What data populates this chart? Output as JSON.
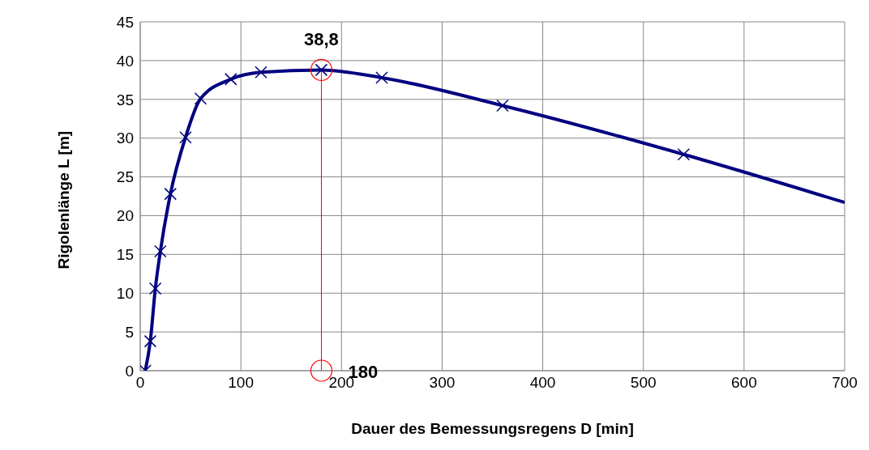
{
  "chart_data": {
    "type": "line",
    "xlabel": "Dauer des Bemessungsregens  D [min]",
    "ylabel": "Rigolenlänge L [m]",
    "series": [
      {
        "color": "#000080",
        "marker": "none",
        "x": [
          5,
          10,
          15,
          20,
          30,
          45,
          60,
          90,
          120,
          180,
          240,
          360,
          540,
          700
        ],
        "values": [
          0,
          3.8,
          10.6,
          15.4,
          22.8,
          30.1,
          35.1,
          37.6,
          38.5,
          38.8,
          37.8,
          34.2,
          27.9,
          21.7
        ]
      },
      {
        "type": "scatter",
        "color": "#000080",
        "marker": "cross",
        "x": [
          5,
          10,
          15,
          20,
          30,
          45,
          60,
          90,
          120,
          180,
          240,
          360,
          540
        ],
        "values": [
          0,
          3.8,
          10.6,
          15.4,
          22.8,
          30.1,
          35.1,
          37.6,
          38.5,
          38.8,
          37.8,
          34.2,
          27.9
        ]
      }
    ],
    "xlim": [
      0,
      700
    ],
    "xticks": [
      0,
      100,
      200,
      300,
      400,
      500,
      600,
      700
    ],
    "ylim": [
      0,
      45
    ],
    "yticks": [
      0,
      5,
      10,
      15,
      20,
      25,
      30,
      35,
      40,
      45
    ],
    "grid": true,
    "ref_lines": [
      {
        "axis": "x",
        "value": 180,
        "color": "#ff0000"
      }
    ],
    "annotations": [
      {
        "text": "38,8",
        "x": 180,
        "y": 38.8
      },
      {
        "text": "180",
        "x": 180,
        "y": 0
      }
    ]
  }
}
